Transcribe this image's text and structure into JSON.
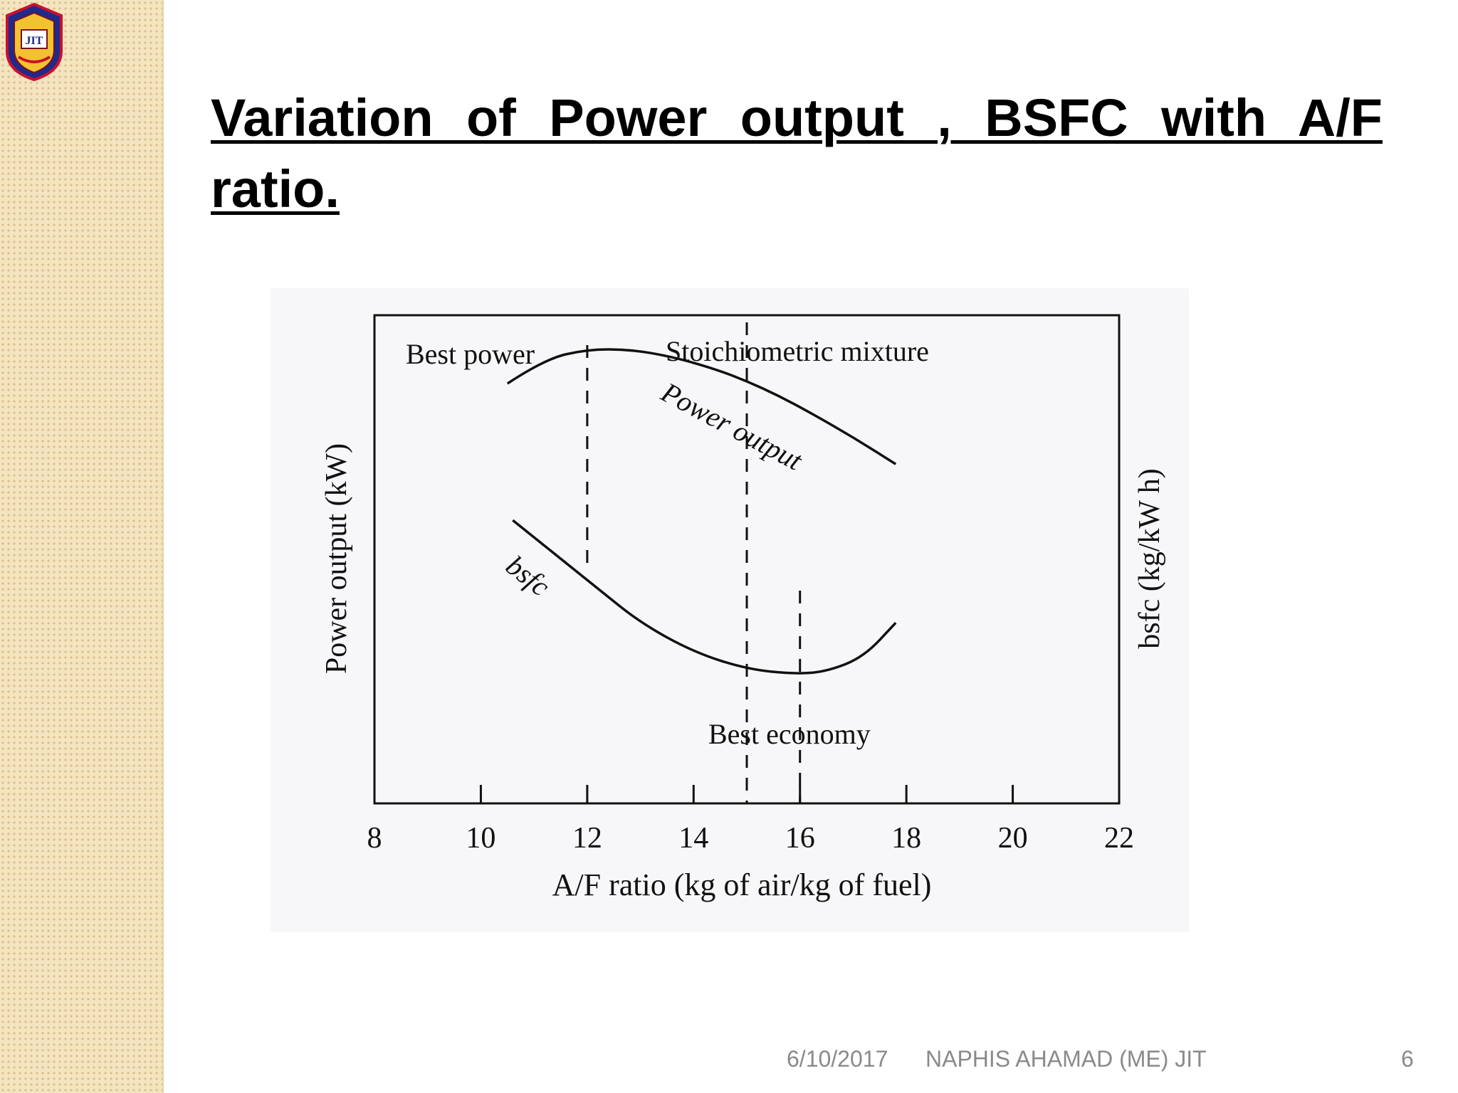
{
  "slide": {
    "title": "Variation of Power output , BSFC with A/F ratio.",
    "logo_icon": "college-crest-icon",
    "logo_text": "JIT"
  },
  "footer": {
    "date": "6/10/2017",
    "author": "NAPHIS AHAMAD (ME) JIT",
    "page": "6"
  },
  "chart_data": {
    "type": "line",
    "xlabel": "A/F ratio (kg of air/kg of fuel)",
    "ylabel_left": "Power output (kW)",
    "ylabel_right": "bsfc (kg/kW h)",
    "xlim": [
      8,
      22
    ],
    "xticks": [
      8,
      10,
      12,
      14,
      16,
      18,
      20,
      22
    ],
    "grid": false,
    "series": [
      {
        "name": "Power output",
        "x": [
          10.5,
          11.2,
          12.0,
          12.8,
          13.6,
          14.4,
          15.0,
          15.6,
          16.2,
          17.0,
          17.8
        ],
        "y": [
          0.86,
          0.91,
          0.93,
          0.93,
          0.915,
          0.89,
          0.865,
          0.835,
          0.8,
          0.75,
          0.695
        ]
      },
      {
        "name": "bsfc",
        "x": [
          10.6,
          11.4,
          12.2,
          13.0,
          14.0,
          15.0,
          15.9,
          16.5,
          17.2,
          17.8
        ],
        "y": [
          0.58,
          0.51,
          0.44,
          0.37,
          0.31,
          0.275,
          0.265,
          0.27,
          0.3,
          0.37
        ]
      }
    ],
    "annotations": [
      {
        "text": "Best power",
        "x": 12.0
      },
      {
        "text": "Stoichiometric mixture",
        "x": 15.0
      },
      {
        "text": "Best economy",
        "x": 16.0
      }
    ]
  }
}
